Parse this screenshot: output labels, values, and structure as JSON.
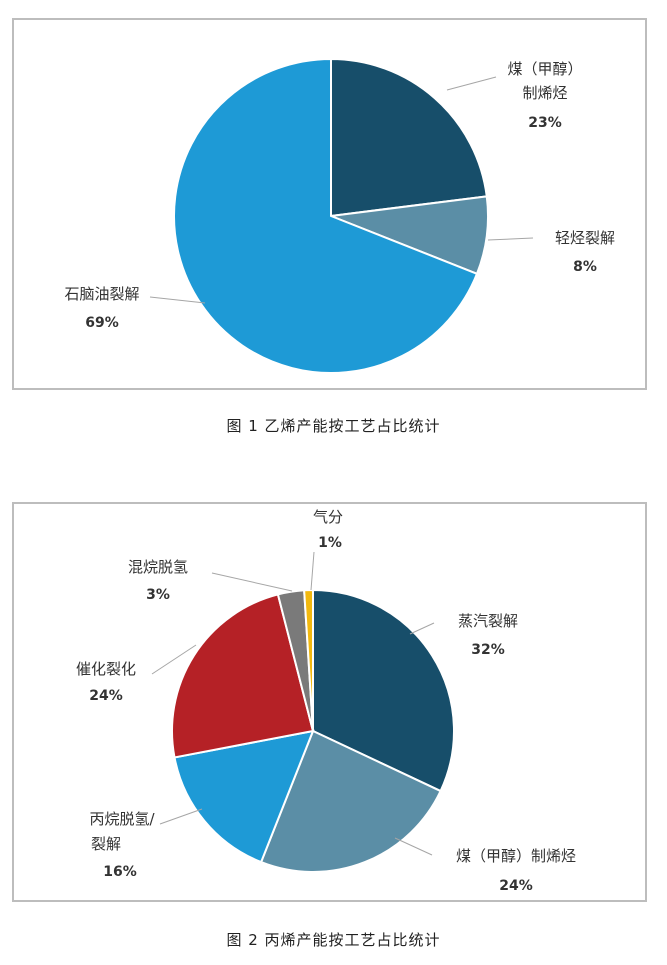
{
  "figures": [
    {
      "caption": "图 1   乙烯产能按工艺占比统计"
    },
    {
      "caption": "图 2   丙烯产能按工艺占比统计"
    }
  ],
  "chart_data": [
    {
      "type": "pie",
      "slices": [
        {
          "label_lines": [
            "煤（甲醇）",
            "制烯烃"
          ],
          "value": 23,
          "value_label": "23%",
          "color": "#174e6a"
        },
        {
          "label_lines": [
            "轻烃裂解"
          ],
          "value": 8,
          "value_label": "8%",
          "color": "#5b8ea6"
        },
        {
          "label_lines": [
            "石脑油裂解"
          ],
          "value": 69,
          "value_label": "69%",
          "color": "#1e9ad6"
        }
      ]
    },
    {
      "type": "pie",
      "slices": [
        {
          "label_lines": [
            "蒸汽裂解"
          ],
          "value": 32,
          "value_label": "32%",
          "color": "#174e6a"
        },
        {
          "label_lines": [
            "煤（甲醇）制烯烃"
          ],
          "value": 24,
          "value_label": "24%",
          "color": "#5b8ea6"
        },
        {
          "label_lines": [
            "丙烷脱氢/",
            "裂解"
          ],
          "value": 16,
          "value_label": "16%",
          "color": "#1e9ad6"
        },
        {
          "label_lines": [
            "催化裂化"
          ],
          "value": 24,
          "value_label": "24%",
          "color": "#b52126"
        },
        {
          "label_lines": [
            "混烷脱氢"
          ],
          "value": 3,
          "value_label": "3%",
          "color": "#7a7a7a"
        },
        {
          "label_lines": [
            "气分"
          ],
          "value": 1,
          "value_label": "1%",
          "color": "#f2b90f"
        }
      ]
    }
  ]
}
